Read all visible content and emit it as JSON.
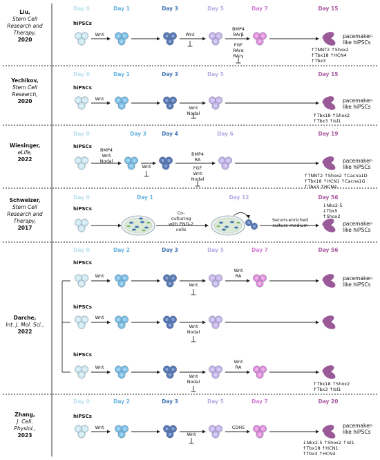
{
  "colors": {
    "day0": "#b9dff0",
    "day1": "#63b1e0",
    "day3": "#3f73b2",
    "day5": "#b7a8e4",
    "day7": "#d47ad2",
    "day_end": "#a8569e",
    "cell0": "#cfe9f2",
    "cell1": "#7cc0e8",
    "cell3": "#5577b6",
    "cell5": "#c6b6ec",
    "cell7": "#e48fde",
    "cell_end": "#9a5a98",
    "line": "#222222"
  },
  "rows": [
    {
      "ref": [
        "Liu,",
        "Stem Cell",
        "Research and",
        "Therapy,",
        "2020"
      ],
      "days": [
        "Day 0",
        "Day 1",
        "Day 3",
        "Day 5",
        "Day 7",
        "Day 15"
      ],
      "start": "hiPSCs",
      "end": [
        "pacemaker-",
        "like hiPSCs"
      ],
      "steps": [
        "Wnt",
        "",
        "Wnt",
        "BMP4 RArβ FGF RArα RArγ",
        ""
      ],
      "markers": [
        "↑TNNT2 ↑Shox2",
        "↑Tbx18  ↑HCN4",
        "↑Tbx3"
      ]
    },
    {
      "ref": [
        "Yechikov,",
        "Stem Cell",
        "Research,",
        "2020"
      ],
      "days": [
        "Day 0",
        "Day 1",
        "Day 3",
        "Day 5",
        "Day 15"
      ],
      "start": "hiPSCs",
      "end": [
        "pacemaker-",
        "like hiPSCs"
      ],
      "steps": [
        "Wnt",
        "",
        "Wnt Nodal"
      ],
      "markers": [
        "↑Tbx18 ↑Shox2",
        "↑Tbx3   ↑Isl1"
      ]
    },
    {
      "ref": [
        "Wiesinger,",
        "eLife,",
        "2022"
      ],
      "days": [
        "Day 0",
        "Day 3",
        "Day 4",
        "Day 6",
        "Day 19"
      ],
      "start": "hiPSCs",
      "end": [
        "pacemaker-",
        "like hiPSCs"
      ],
      "steps": [
        "BMP4 Wnt Nodal",
        "Wnt",
        "BMP4 RA FGF Wnt Nodal"
      ],
      "markers": [
        "↑TNNT2 ↑Shox2 ↑Cacna1D",
        "↑Tbx18 ↑HCN1  ↑Cacna1G",
        "↑Tbx3   ↑HCN4"
      ]
    },
    {
      "ref": [
        "Schweizer,",
        "Stem Cell",
        "Research and",
        "Therapy,",
        "2017"
      ],
      "days": [
        "Day 0",
        "Day 1",
        "Day 12",
        "Day 56"
      ],
      "start": "hiPSCs",
      "end": [
        "pacemaker-",
        "like hiPSCs"
      ],
      "coculture": [
        "Co-",
        "culturing",
        "with END-2",
        "cells"
      ],
      "serum": [
        "Serum-enriched",
        "culture medium"
      ],
      "markers": [
        "↓Nkx2-5",
        "↓Tbx5",
        "↑Shox2"
      ]
    },
    {
      "ref": [
        "Darche,",
        "Int. J. Mol. Sci.,",
        "2022"
      ],
      "days": [
        "Day 0",
        "Day 2",
        "Day 3",
        "Day 5",
        "Day 7",
        "Day 56"
      ],
      "start": "hiPSCs",
      "end": [
        "pacemaker-",
        "like hiPSCs"
      ],
      "sub1": [
        "Wnt",
        "",
        "Wnt",
        "Wnt RA"
      ],
      "sub2": [
        "Wnt",
        "",
        "Wnt Nodal"
      ],
      "sub3": [
        "Wnt",
        "",
        "Wnt Nodal",
        "Wnt RA"
      ],
      "markers": [
        "↑Tbx18 ↑Shox2",
        "↑Tbx3   ↑Isl1"
      ]
    },
    {
      "ref": [
        "Zhang,",
        "J. Cell.",
        "Physiol.,",
        "2023"
      ],
      "days": [
        "Day 0",
        "Day 2",
        "Day 3",
        "Day 5",
        "Day 7",
        "Day 20"
      ],
      "start": "hiPSCs",
      "end": [
        "pacemaker-",
        "like hiPSCs"
      ],
      "steps": [
        "Wnt",
        "",
        "Wnt",
        "CDH5"
      ],
      "markers": [
        "↓Nkx2-5 ↑Shox2 ↑Isl1",
        "↑Tbx18  ↑HCN1",
        "↑Tbx3   ↑HCN4"
      ]
    }
  ]
}
